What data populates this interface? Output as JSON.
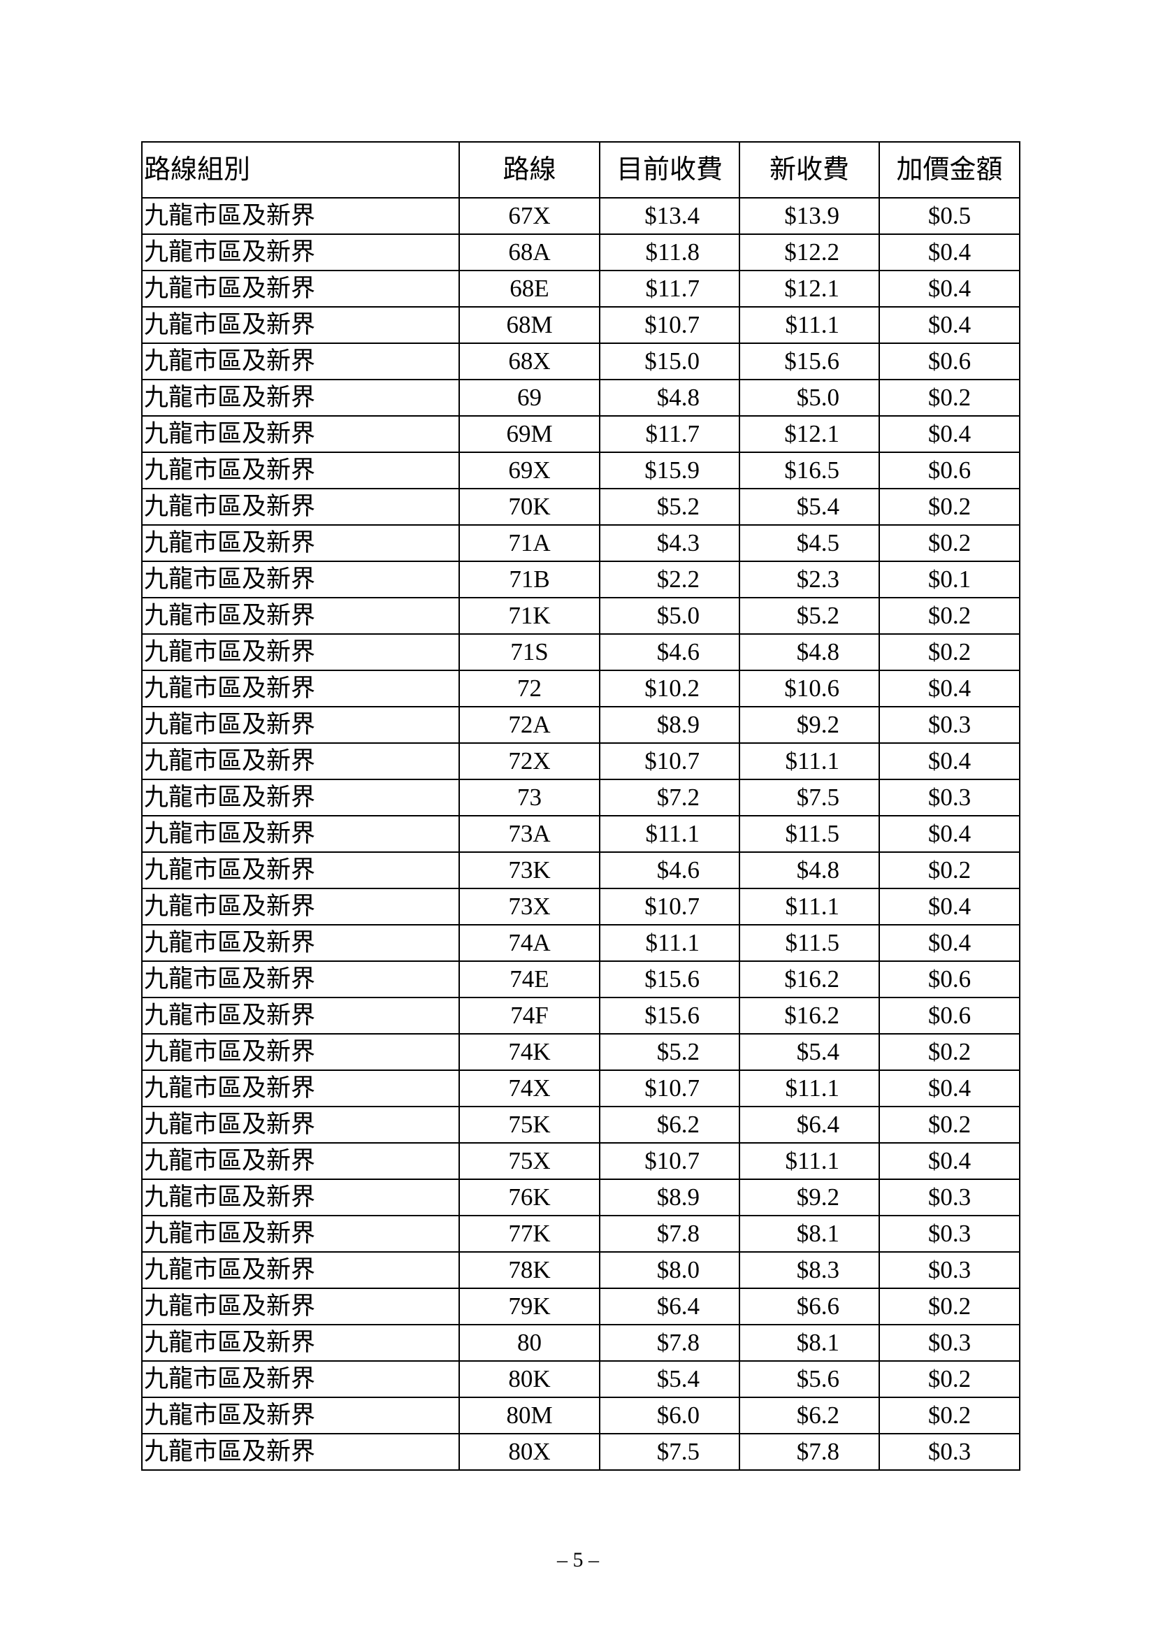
{
  "table": {
    "headers": [
      "路線組別",
      "路線",
      "目前收費",
      "新收費",
      "加價金額"
    ],
    "rows": [
      [
        "九龍市區及新界",
        "67X",
        "$13.4",
        "$13.9",
        "$0.5"
      ],
      [
        "九龍市區及新界",
        "68A",
        "$11.8",
        "$12.2",
        "$0.4"
      ],
      [
        "九龍市區及新界",
        "68E",
        "$11.7",
        "$12.1",
        "$0.4"
      ],
      [
        "九龍市區及新界",
        "68M",
        "$10.7",
        "$11.1",
        "$0.4"
      ],
      [
        "九龍市區及新界",
        "68X",
        "$15.0",
        "$15.6",
        "$0.6"
      ],
      [
        "九龍市區及新界",
        "69",
        "$4.8",
        "$5.0",
        "$0.2"
      ],
      [
        "九龍市區及新界",
        "69M",
        "$11.7",
        "$12.1",
        "$0.4"
      ],
      [
        "九龍市區及新界",
        "69X",
        "$15.9",
        "$16.5",
        "$0.6"
      ],
      [
        "九龍市區及新界",
        "70K",
        "$5.2",
        "$5.4",
        "$0.2"
      ],
      [
        "九龍市區及新界",
        "71A",
        "$4.3",
        "$4.5",
        "$0.2"
      ],
      [
        "九龍市區及新界",
        "71B",
        "$2.2",
        "$2.3",
        "$0.1"
      ],
      [
        "九龍市區及新界",
        "71K",
        "$5.0",
        "$5.2",
        "$0.2"
      ],
      [
        "九龍市區及新界",
        "71S",
        "$4.6",
        "$4.8",
        "$0.2"
      ],
      [
        "九龍市區及新界",
        "72",
        "$10.2",
        "$10.6",
        "$0.4"
      ],
      [
        "九龍市區及新界",
        "72A",
        "$8.9",
        "$9.2",
        "$0.3"
      ],
      [
        "九龍市區及新界",
        "72X",
        "$10.7",
        "$11.1",
        "$0.4"
      ],
      [
        "九龍市區及新界",
        "73",
        "$7.2",
        "$7.5",
        "$0.3"
      ],
      [
        "九龍市區及新界",
        "73A",
        "$11.1",
        "$11.5",
        "$0.4"
      ],
      [
        "九龍市區及新界",
        "73K",
        "$4.6",
        "$4.8",
        "$0.2"
      ],
      [
        "九龍市區及新界",
        "73X",
        "$10.7",
        "$11.1",
        "$0.4"
      ],
      [
        "九龍市區及新界",
        "74A",
        "$11.1",
        "$11.5",
        "$0.4"
      ],
      [
        "九龍市區及新界",
        "74E",
        "$15.6",
        "$16.2",
        "$0.6"
      ],
      [
        "九龍市區及新界",
        "74F",
        "$15.6",
        "$16.2",
        "$0.6"
      ],
      [
        "九龍市區及新界",
        "74K",
        "$5.2",
        "$5.4",
        "$0.2"
      ],
      [
        "九龍市區及新界",
        "74X",
        "$10.7",
        "$11.1",
        "$0.4"
      ],
      [
        "九龍市區及新界",
        "75K",
        "$6.2",
        "$6.4",
        "$0.2"
      ],
      [
        "九龍市區及新界",
        "75X",
        "$10.7",
        "$11.1",
        "$0.4"
      ],
      [
        "九龍市區及新界",
        "76K",
        "$8.9",
        "$9.2",
        "$0.3"
      ],
      [
        "九龍市區及新界",
        "77K",
        "$7.8",
        "$8.1",
        "$0.3"
      ],
      [
        "九龍市區及新界",
        "78K",
        "$8.0",
        "$8.3",
        "$0.3"
      ],
      [
        "九龍市區及新界",
        "79K",
        "$6.4",
        "$6.6",
        "$0.2"
      ],
      [
        "九龍市區及新界",
        "80",
        "$7.8",
        "$8.1",
        "$0.3"
      ],
      [
        "九龍市區及新界",
        "80K",
        "$5.4",
        "$5.6",
        "$0.2"
      ],
      [
        "九龍市區及新界",
        "80M",
        "$6.0",
        "$6.2",
        "$0.2"
      ],
      [
        "九龍市區及新界",
        "80X",
        "$7.5",
        "$7.8",
        "$0.3"
      ]
    ]
  },
  "footer": {
    "page_number": "– 5 –"
  }
}
